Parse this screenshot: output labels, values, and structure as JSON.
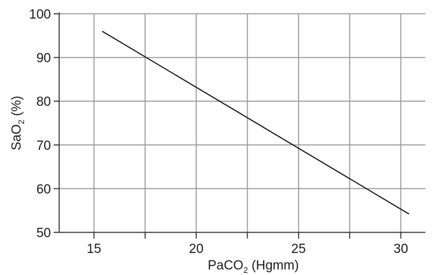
{
  "chart_data": {
    "type": "line",
    "title": "",
    "xlabel": {
      "main": "PaCO",
      "sub": "2",
      "rest": " (Hgmm)"
    },
    "ylabel": {
      "main": "SaO",
      "sub": "2",
      "rest": " (%)"
    },
    "xlim": [
      13.3,
      31.2
    ],
    "ylim": [
      50,
      100
    ],
    "x_ticks": [
      15,
      20,
      25,
      30
    ],
    "y_ticks": [
      50,
      60,
      70,
      80,
      90,
      100
    ],
    "x_ticks_labels": [
      "15",
      "20",
      "25",
      "30"
    ],
    "y_ticks_labels": [
      "50",
      "60",
      "70",
      "80",
      "90",
      "100"
    ],
    "grid": true,
    "x_minor_step": 2.5,
    "series": [
      {
        "points": [
          {
            "x": 15.4,
            "y": 96
          },
          {
            "x": 30.4,
            "y": 54.2
          }
        ]
      }
    ],
    "colors": {
      "line": "#111111",
      "grid": "#9a9a9a",
      "axis": "#333333"
    }
  }
}
